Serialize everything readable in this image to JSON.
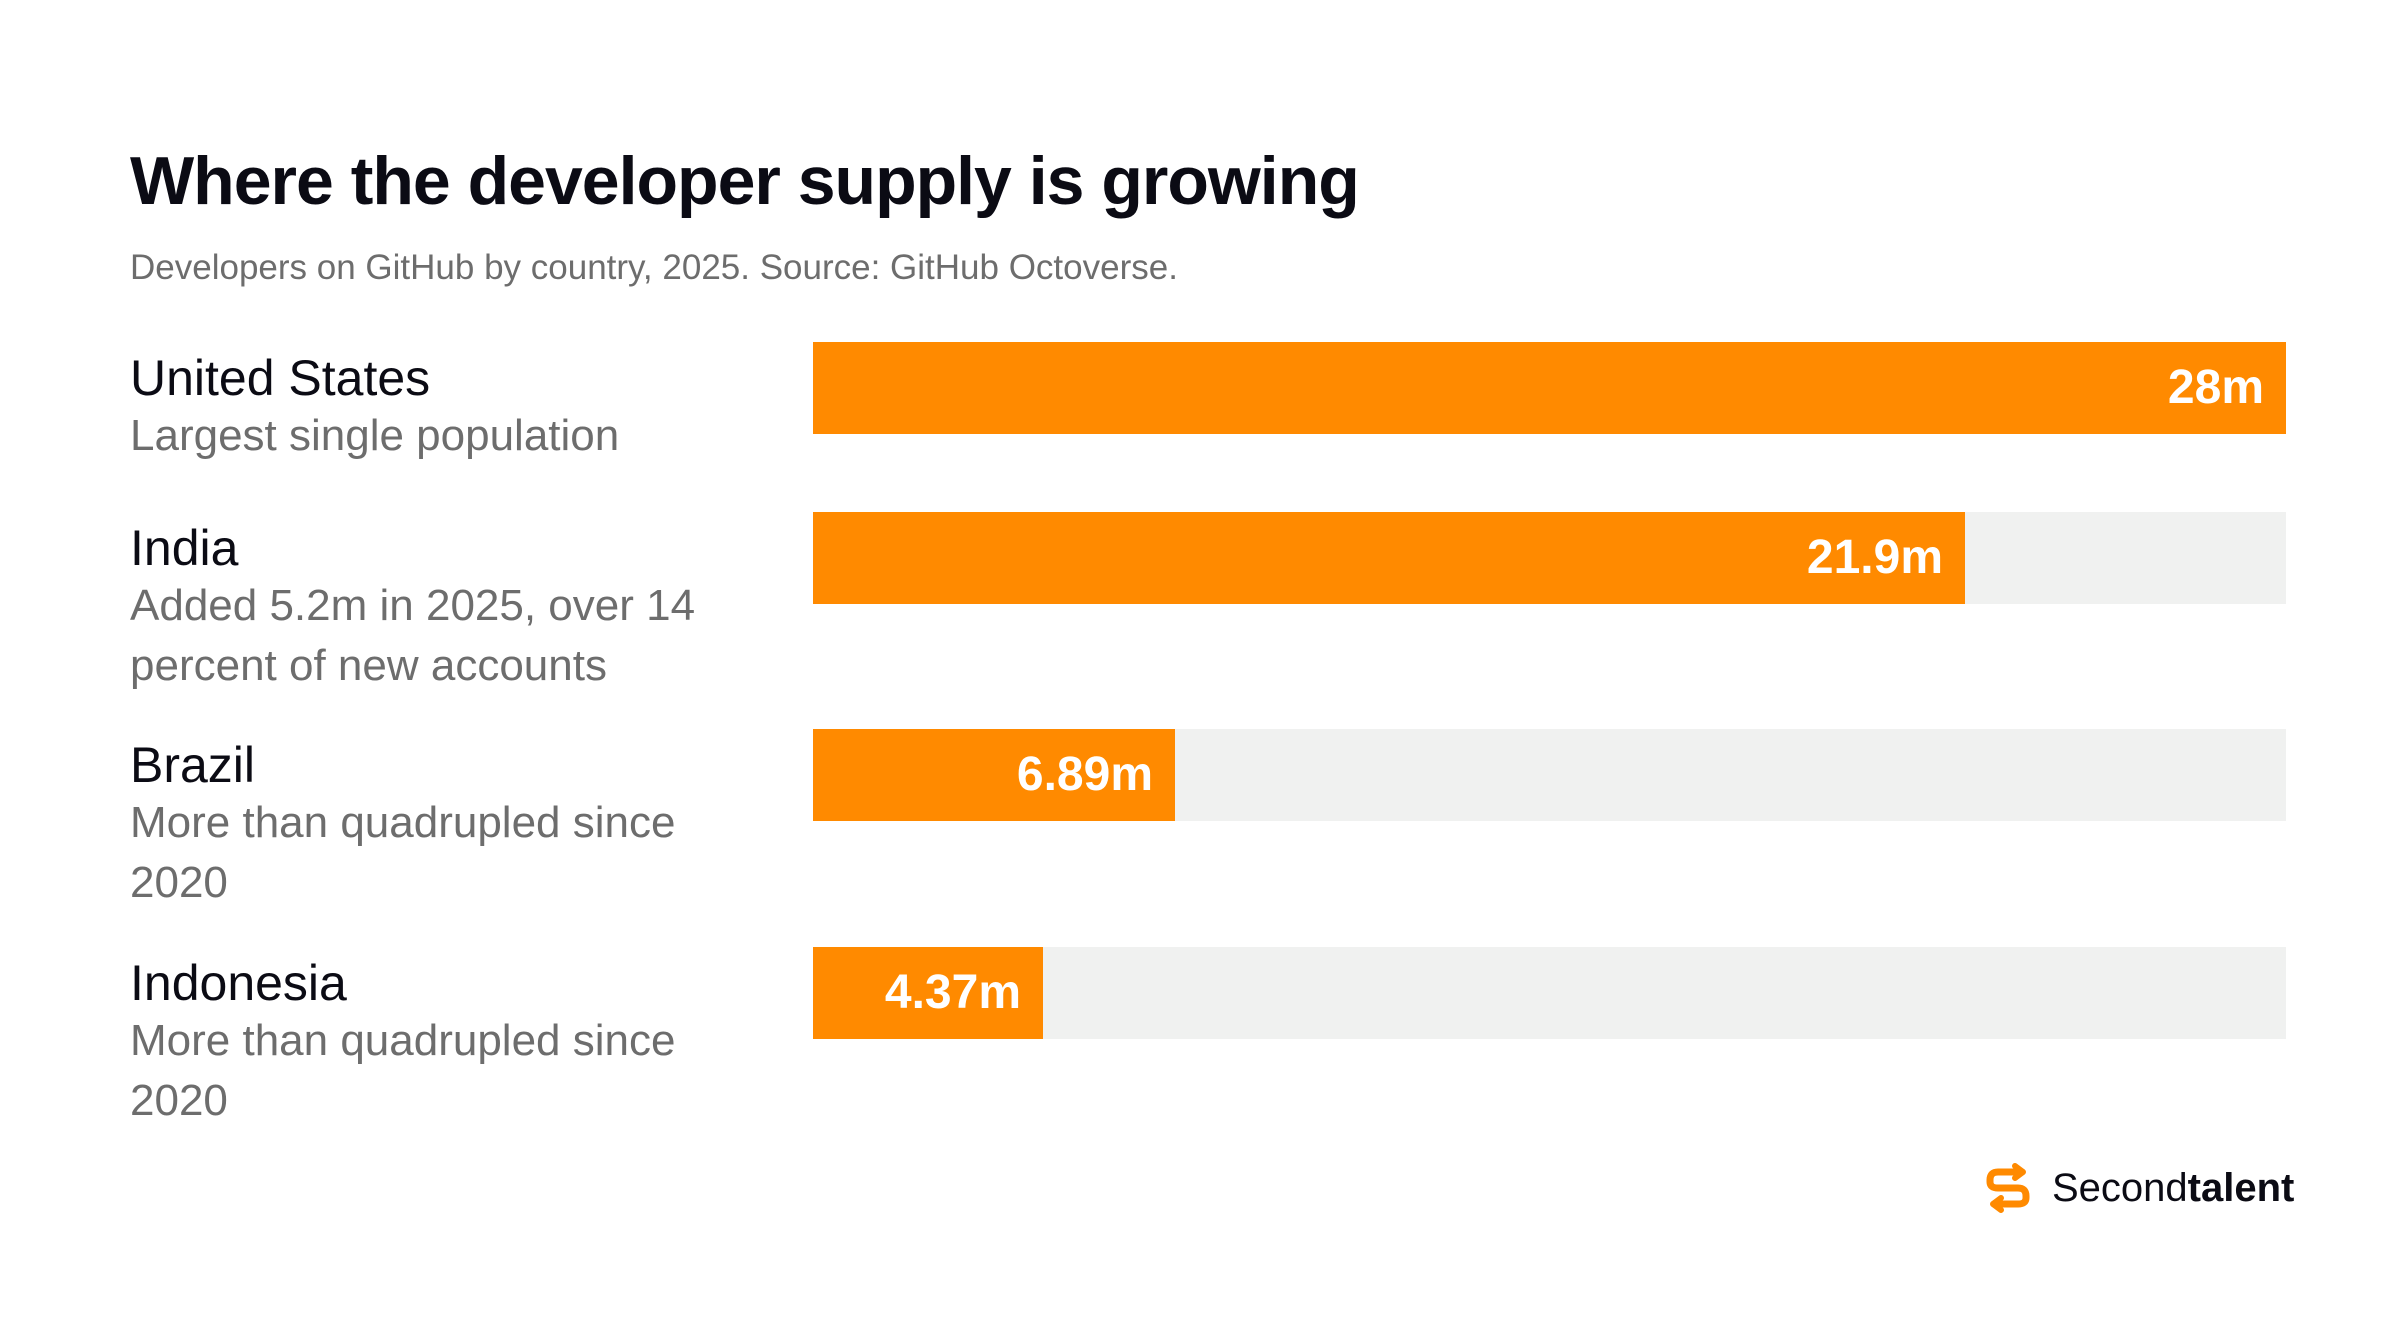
{
  "title": "Where the developer supply is growing",
  "subtitle": "Developers on GitHub by country, 2025. Source: GitHub Octoverse.",
  "colors": {
    "bar": "#ff8a00",
    "track": "#f0f1f0",
    "value_on_bar": "#ffffff",
    "value_off_bar": "#0b0b14",
    "note_text": "#6d6d6d"
  },
  "brand": {
    "icon": "secondtalent-s-logo-icon",
    "name_light": "Second",
    "name_bold": "talent"
  },
  "chart_data": {
    "type": "bar",
    "orientation": "horizontal",
    "categories": [
      "United States",
      "India",
      "Brazil",
      "Indonesia"
    ],
    "notes": [
      "Largest single population",
      "Added 5.2m in 2025, over 14 percent of new accounts",
      "More than quadrupled since 2020",
      "More than quadrupled since 2020"
    ],
    "values": [
      28,
      21.9,
      6.89,
      4.37
    ],
    "value_labels": [
      "28m",
      "21.9m",
      "6.89m",
      "4.37m"
    ],
    "unit": "m",
    "xlim": [
      0,
      28
    ],
    "grid": false,
    "legend": "none"
  }
}
